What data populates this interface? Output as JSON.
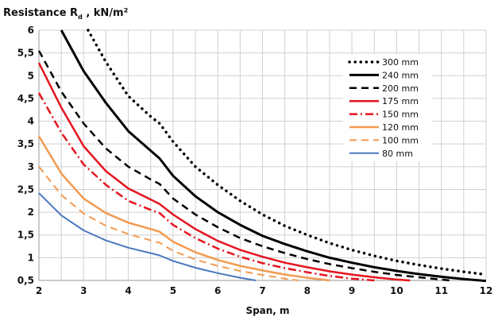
{
  "chart_data": {
    "type": "line",
    "title": "",
    "ylabel": {
      "main": "Resistance R",
      "sub": "d",
      "unit": " , kN/m²"
    },
    "xlabel": "Span, m",
    "xlim": [
      2,
      12
    ],
    "ylim": [
      0.5,
      6
    ],
    "xticks": [
      "2",
      "3",
      "4",
      "5",
      "6",
      "7",
      "8",
      "9",
      "10",
      "11",
      "12"
    ],
    "yticks": [
      "0,5",
      "1",
      "1,5",
      "2",
      "2,5",
      "3",
      "3,5",
      "4",
      "4,5",
      "5",
      "5,5",
      "6"
    ],
    "grid": true,
    "legend_position": "top-right",
    "series": [
      {
        "name": "300 mm",
        "color": "#000000",
        "style": "dotted",
        "width": 3.5,
        "points": [
          [
            3.1,
            6.0
          ],
          [
            3.5,
            5.3
          ],
          [
            4.0,
            4.55
          ],
          [
            4.5,
            4.1
          ],
          [
            4.7,
            3.95
          ],
          [
            5.0,
            3.55
          ],
          [
            5.5,
            3.0
          ],
          [
            6.0,
            2.6
          ],
          [
            6.5,
            2.25
          ],
          [
            7.0,
            1.95
          ],
          [
            7.5,
            1.7
          ],
          [
            8.0,
            1.5
          ],
          [
            8.5,
            1.32
          ],
          [
            9.0,
            1.17
          ],
          [
            9.5,
            1.04
          ],
          [
            10.0,
            0.93
          ],
          [
            10.5,
            0.84
          ],
          [
            11.0,
            0.76
          ],
          [
            11.5,
            0.69
          ],
          [
            12.0,
            0.63
          ]
        ]
      },
      {
        "name": "240 mm",
        "color": "#000000",
        "style": "solid",
        "width": 3,
        "points": [
          [
            2.5,
            6.0
          ],
          [
            3.0,
            5.1
          ],
          [
            3.5,
            4.4
          ],
          [
            4.0,
            3.78
          ],
          [
            4.5,
            3.35
          ],
          [
            4.7,
            3.18
          ],
          [
            5.0,
            2.8
          ],
          [
            5.5,
            2.35
          ],
          [
            6.0,
            2.0
          ],
          [
            6.5,
            1.72
          ],
          [
            7.0,
            1.48
          ],
          [
            7.5,
            1.3
          ],
          [
            8.0,
            1.14
          ],
          [
            8.5,
            1.0
          ],
          [
            9.0,
            0.89
          ],
          [
            9.5,
            0.79
          ],
          [
            10.0,
            0.71
          ],
          [
            10.5,
            0.64
          ],
          [
            11.0,
            0.58
          ],
          [
            11.5,
            0.53
          ],
          [
            12.0,
            0.49
          ]
        ]
      },
      {
        "name": "200 mm",
        "color": "#000000",
        "style": "dashed",
        "width": 2.5,
        "points": [
          [
            2.0,
            5.55
          ],
          [
            2.5,
            4.65
          ],
          [
            3.0,
            3.95
          ],
          [
            3.5,
            3.4
          ],
          [
            4.0,
            3.0
          ],
          [
            4.5,
            2.72
          ],
          [
            4.7,
            2.62
          ],
          [
            5.0,
            2.3
          ],
          [
            5.5,
            1.95
          ],
          [
            6.0,
            1.67
          ],
          [
            6.5,
            1.43
          ],
          [
            7.0,
            1.25
          ],
          [
            7.5,
            1.1
          ],
          [
            8.0,
            0.97
          ],
          [
            8.5,
            0.86
          ],
          [
            9.0,
            0.77
          ],
          [
            9.5,
            0.69
          ],
          [
            10.0,
            0.62
          ],
          [
            10.5,
            0.57
          ],
          [
            11.0,
            0.52
          ],
          [
            11.2,
            0.5
          ]
        ]
      },
      {
        "name": "175 mm",
        "color": "#e5141e",
        "style": "solid",
        "width": 2.5,
        "points": [
          [
            2.0,
            5.28
          ],
          [
            2.5,
            4.3
          ],
          [
            3.0,
            3.45
          ],
          [
            3.5,
            2.9
          ],
          [
            4.0,
            2.52
          ],
          [
            4.5,
            2.28
          ],
          [
            4.7,
            2.18
          ],
          [
            5.0,
            1.95
          ],
          [
            5.5,
            1.63
          ],
          [
            6.0,
            1.37
          ],
          [
            6.5,
            1.17
          ],
          [
            7.0,
            1.02
          ],
          [
            7.5,
            0.89
          ],
          [
            8.0,
            0.79
          ],
          [
            8.5,
            0.7
          ],
          [
            9.0,
            0.63
          ],
          [
            9.5,
            0.57
          ],
          [
            10.0,
            0.52
          ],
          [
            10.3,
            0.5
          ]
        ]
      },
      {
        "name": "150 mm",
        "color": "#e5141e",
        "style": "dashdot",
        "width": 2.5,
        "points": [
          [
            2.0,
            4.62
          ],
          [
            2.5,
            3.75
          ],
          [
            3.0,
            3.05
          ],
          [
            3.5,
            2.6
          ],
          [
            4.0,
            2.25
          ],
          [
            4.5,
            2.05
          ],
          [
            4.7,
            1.98
          ],
          [
            5.0,
            1.72
          ],
          [
            5.5,
            1.43
          ],
          [
            6.0,
            1.2
          ],
          [
            6.5,
            1.02
          ],
          [
            7.0,
            0.88
          ],
          [
            7.5,
            0.77
          ],
          [
            8.0,
            0.68
          ],
          [
            8.5,
            0.6
          ],
          [
            9.0,
            0.54
          ],
          [
            9.5,
            0.5
          ]
        ]
      },
      {
        "name": "120 mm",
        "color": "#f29a50",
        "style": "solid",
        "width": 2.5,
        "points": [
          [
            2.0,
            3.67
          ],
          [
            2.5,
            2.85
          ],
          [
            3.0,
            2.3
          ],
          [
            3.5,
            1.98
          ],
          [
            4.0,
            1.77
          ],
          [
            4.5,
            1.63
          ],
          [
            4.7,
            1.57
          ],
          [
            5.0,
            1.35
          ],
          [
            5.5,
            1.12
          ],
          [
            6.0,
            0.95
          ],
          [
            6.5,
            0.82
          ],
          [
            7.0,
            0.72
          ],
          [
            7.5,
            0.63
          ],
          [
            8.0,
            0.56
          ],
          [
            8.5,
            0.5
          ]
        ]
      },
      {
        "name": "100 mm",
        "color": "#f29a50",
        "style": "dashed",
        "width": 2,
        "points": [
          [
            2.0,
            3.0
          ],
          [
            2.5,
            2.38
          ],
          [
            3.0,
            1.97
          ],
          [
            3.5,
            1.7
          ],
          [
            4.0,
            1.52
          ],
          [
            4.5,
            1.38
          ],
          [
            4.7,
            1.33
          ],
          [
            5.0,
            1.15
          ],
          [
            5.5,
            0.96
          ],
          [
            6.0,
            0.82
          ],
          [
            6.5,
            0.71
          ],
          [
            7.0,
            0.62
          ],
          [
            7.5,
            0.54
          ],
          [
            7.8,
            0.5
          ]
        ]
      },
      {
        "name": "80 mm",
        "color": "#4a78bf",
        "style": "solid",
        "width": 2,
        "points": [
          [
            2.0,
            2.42
          ],
          [
            2.5,
            1.93
          ],
          [
            3.0,
            1.6
          ],
          [
            3.5,
            1.38
          ],
          [
            4.0,
            1.22
          ],
          [
            4.5,
            1.1
          ],
          [
            4.7,
            1.05
          ],
          [
            5.0,
            0.93
          ],
          [
            5.5,
            0.78
          ],
          [
            6.0,
            0.66
          ],
          [
            6.5,
            0.56
          ],
          [
            6.85,
            0.5
          ]
        ]
      }
    ]
  }
}
